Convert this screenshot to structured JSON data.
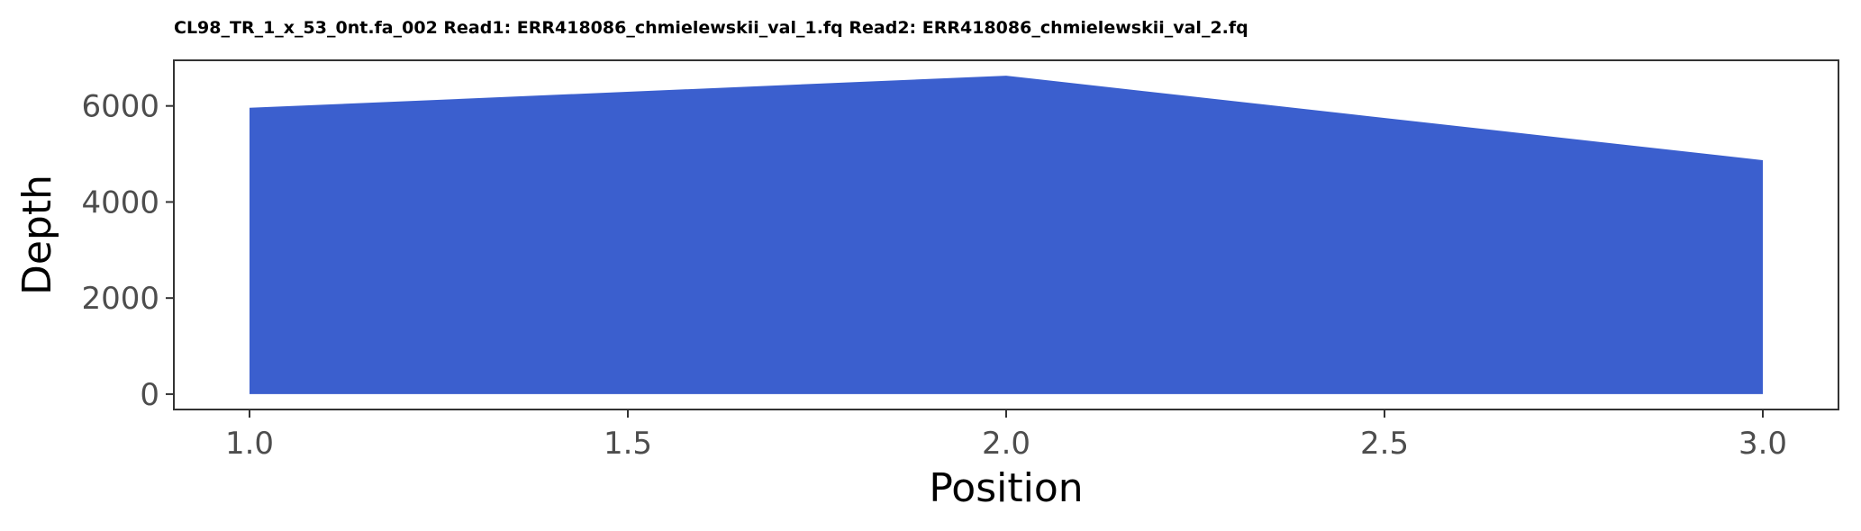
{
  "chart_data": {
    "type": "area",
    "title": "CL98_TR_1_x_53_0nt.fa_002 Read1: ERR418086_chmielewskii_val_1.fq Read2: ERR418086_chmielewskii_val_2.fq",
    "xlabel": "Position",
    "ylabel": "Depth",
    "x": [
      1.0,
      2.0,
      3.0
    ],
    "series": [
      {
        "values": [
          5960,
          6630,
          4870
        ]
      }
    ],
    "xlim": [
      0.9,
      3.1
    ],
    "ylim": [
      -320,
      6950
    ],
    "xticks": [
      "1.0",
      "1.5",
      "2.0",
      "2.5",
      "3.0"
    ],
    "xtick_values": [
      1.0,
      1.5,
      2.0,
      2.5,
      3.0
    ],
    "yticks": [
      "0",
      "2000",
      "4000",
      "6000"
    ],
    "ytick_values": [
      0,
      2000,
      4000,
      6000
    ],
    "grid": false,
    "legend": "none",
    "fill_color": "#3b5fce",
    "panel_border_color": "#333333"
  }
}
